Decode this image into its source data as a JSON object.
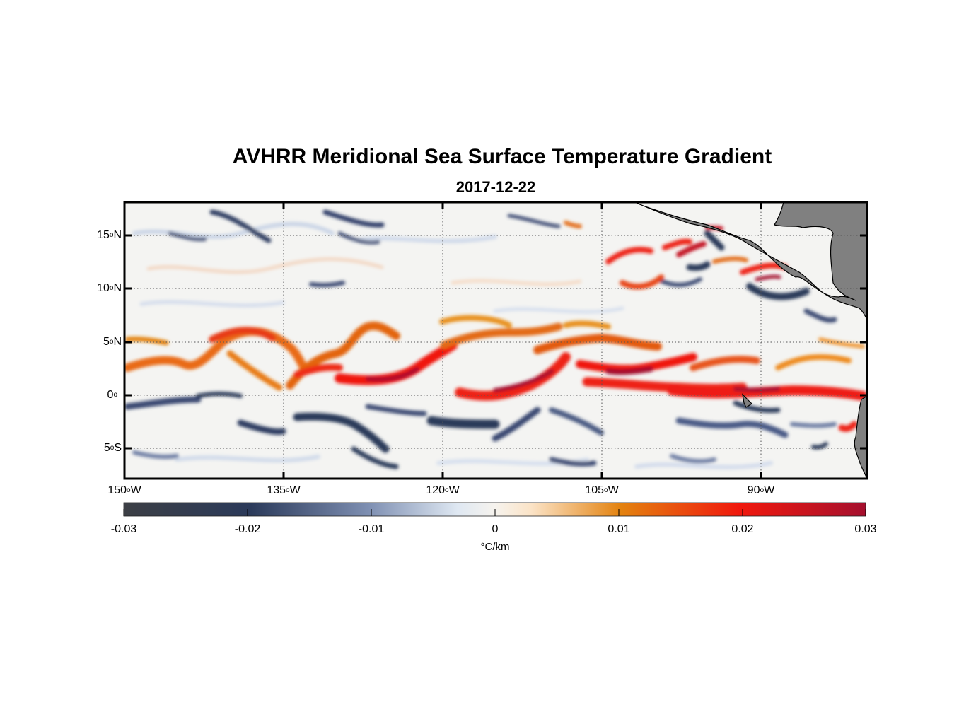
{
  "title": "AVHRR Meridional Sea Surface Temperature Gradient",
  "subtitle": "2017-12-22",
  "axes": {
    "lat_labels": [
      {
        "value": 15,
        "deg": "15",
        "hemi": "N"
      },
      {
        "value": 10,
        "deg": "10",
        "hemi": "N"
      },
      {
        "value": 5,
        "deg": "5",
        "hemi": "N"
      },
      {
        "value": 0,
        "deg": "0",
        "hemi": ""
      },
      {
        "value": -5,
        "deg": "5",
        "hemi": "S"
      }
    ],
    "lon_labels": [
      {
        "value": -150,
        "deg": "150",
        "hemi": "W"
      },
      {
        "value": -135,
        "deg": "135",
        "hemi": "W"
      },
      {
        "value": -120,
        "deg": "120",
        "hemi": "W"
      },
      {
        "value": -105,
        "deg": "105",
        "hemi": "W"
      },
      {
        "value": -90,
        "deg": "90",
        "hemi": "W"
      }
    ],
    "lon_range": [
      -150,
      -80
    ],
    "lat_range": [
      -8,
      18
    ],
    "grid": true
  },
  "colorbar": {
    "ticks": [
      "-0.03",
      "-0.02",
      "-0.01",
      "0",
      "0.01",
      "0.02",
      "0.03"
    ],
    "unit": "°C/km",
    "range": [
      -0.03,
      0.03
    ]
  },
  "colors": {
    "land": "#808080",
    "ocean_bg": "#f6f3ee",
    "neg_strong": "#2b3a5a",
    "pos_strong": "#e01b1b",
    "pos_max": "#a5102e"
  }
}
